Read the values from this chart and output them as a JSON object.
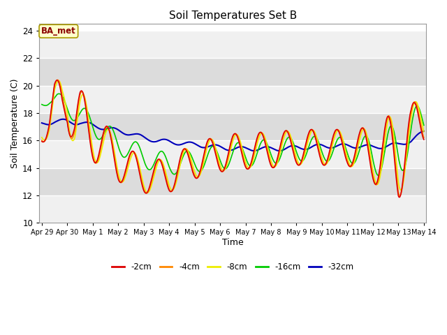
{
  "title": "Soil Temperatures Set B",
  "xlabel": "Time",
  "ylabel": "Soil Temperature (C)",
  "ylim": [
    10,
    24.5
  ],
  "annotation": "BA_met",
  "background_color": "#e8e8e8",
  "band_color_light": "#f0f0f0",
  "band_color_dark": "#dcdcdc",
  "grid_color": "white",
  "series": {
    "-2cm": {
      "color": "#dd0000",
      "lw": 1.2
    },
    "-4cm": {
      "color": "#ff8800",
      "lw": 1.2
    },
    "-8cm": {
      "color": "#eeee00",
      "lw": 1.2
    },
    "-16cm": {
      "color": "#00cc00",
      "lw": 1.2
    },
    "-32cm": {
      "color": "#0000bb",
      "lw": 1.5
    }
  },
  "yticks": [
    10,
    12,
    14,
    16,
    18,
    20,
    22,
    24
  ],
  "xtick_labels": [
    "Apr 29",
    "Apr 30",
    "May 1",
    "May 2",
    "May 3",
    "May 4",
    "May 5",
    "May 6",
    "May 7",
    "May 8",
    "May 9",
    "May 10",
    "May 11",
    "May 12",
    "May 13",
    "May 14"
  ],
  "xtick_positions": [
    0,
    1,
    2,
    3,
    4,
    5,
    6,
    7,
    8,
    9,
    10,
    11,
    12,
    13,
    14,
    15
  ]
}
